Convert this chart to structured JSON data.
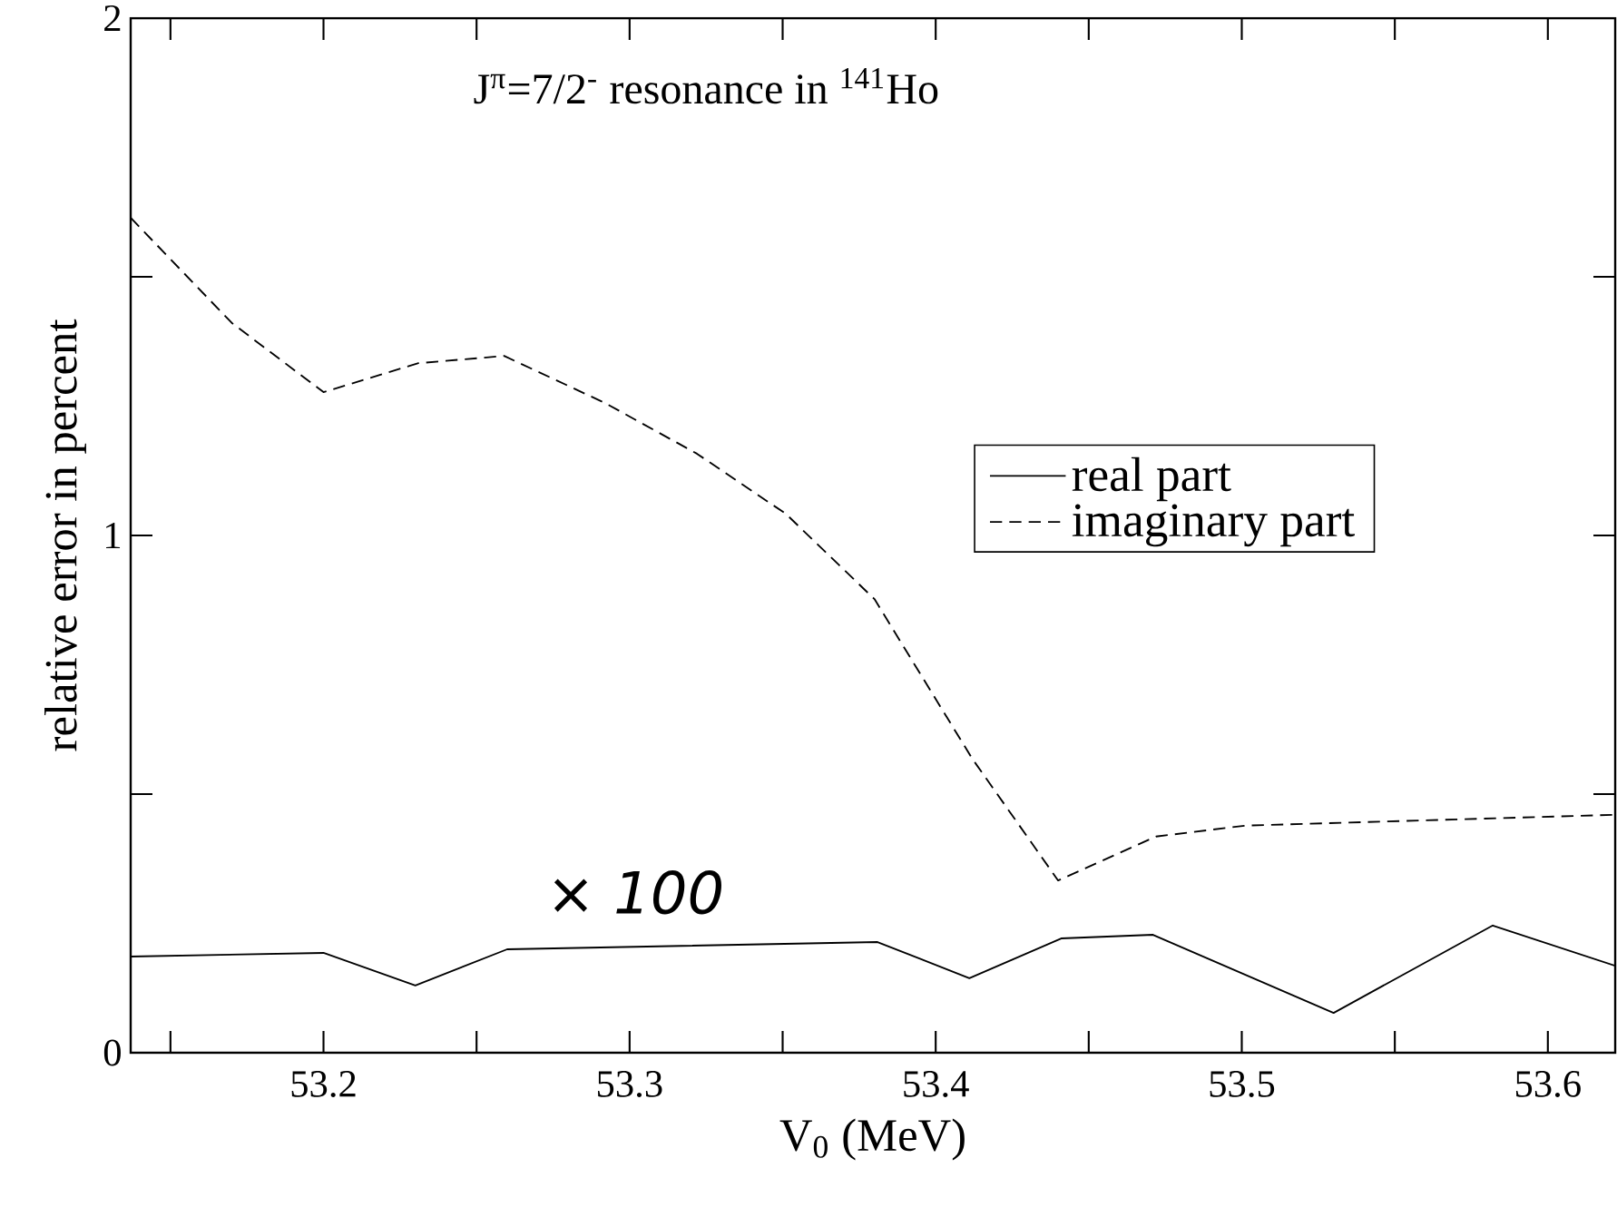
{
  "chart_data": {
    "type": "line",
    "title": "J$^{π}$=7/2$^{-}$ resonance in $^{141}$Ho",
    "xlabel": "V$_{0}$ (MeV)",
    "ylabel": "relative error in percent",
    "xlim": [
      53.137,
      53.622
    ],
    "ylim": [
      0,
      2
    ],
    "xticks": [
      {
        "value": 53.15,
        "label": null
      },
      53.2,
      {
        "value": 53.25,
        "label": null
      },
      53.3,
      {
        "value": 53.35,
        "label": null
      },
      53.4,
      {
        "value": 53.45,
        "label": null
      },
      53.5,
      {
        "value": 53.55,
        "label": null
      },
      53.6
    ],
    "yticks": [
      0,
      {
        "value": 0.5,
        "label": null
      },
      1,
      {
        "value": 1.5,
        "label": null
      },
      2
    ],
    "legend": "right",
    "grid": false,
    "annotations": [
      "× 100"
    ],
    "series": [
      {
        "name": "real part",
        "color": "#000000",
        "line_style": "solid",
        "x": [
          53.137,
          53.2,
          53.23,
          53.26,
          53.381,
          53.411,
          53.441,
          53.471,
          53.53,
          53.582,
          53.622
        ],
        "values": [
          0.186,
          0.193,
          0.13,
          0.2,
          0.214,
          0.144,
          0.221,
          0.228,
          0.077,
          0.246,
          0.168
        ]
      },
      {
        "name": "imaginary part",
        "color": "#000000",
        "line_style": "dashed",
        "x": [
          53.137,
          53.17,
          53.2,
          53.231,
          53.259,
          53.292,
          53.322,
          53.351,
          53.38,
          53.412,
          53.44,
          53.472,
          53.501,
          53.622
        ],
        "values": [
          1.614,
          1.411,
          1.277,
          1.333,
          1.347,
          1.256,
          1.158,
          1.042,
          0.877,
          0.568,
          0.333,
          0.418,
          0.439,
          0.46
        ]
      }
    ]
  }
}
